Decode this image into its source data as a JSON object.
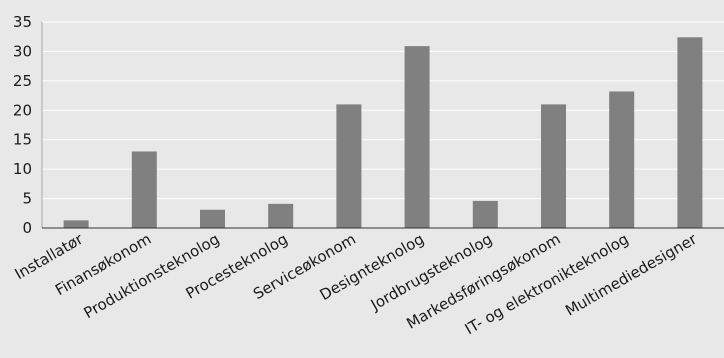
{
  "chart_data": {
    "type": "bar",
    "title": "",
    "xlabel": "",
    "ylabel": "",
    "categories": [
      "Installatør",
      "Finansøkonom",
      "Produktionsteknolog",
      "Procesteknolog",
      "Serviceøkonom",
      "Designteknolog",
      "Jordbrugsteknolog",
      "Markedsføringsøkonom",
      "IT- og elektronikteknolog",
      "Multimediedesigner"
    ],
    "values": [
      1.3,
      13.0,
      3.1,
      4.1,
      21.0,
      30.9,
      4.6,
      21.0,
      23.2,
      32.4
    ],
    "ylim": [
      0,
      35
    ],
    "yticks": [
      "0",
      "5",
      "10",
      "15",
      "20",
      "25",
      "30",
      "35"
    ],
    "grid": true,
    "legend": "none",
    "colors": {
      "bar": "#808080",
      "background": "#e8e8e8",
      "grid": "#ffffff"
    }
  }
}
